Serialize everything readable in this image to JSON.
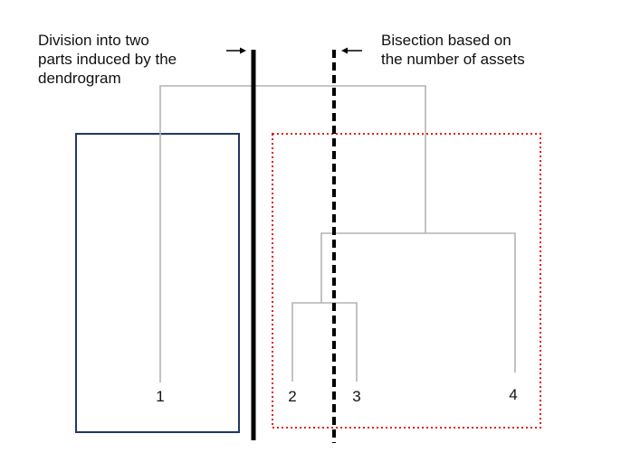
{
  "captions": {
    "left": {
      "line1": "Division into two",
      "line2": "parts induced by the",
      "line3": "dendrogram"
    },
    "right": {
      "line1": "Bisection based on",
      "line2": "the number of assets"
    }
  },
  "leaves": [
    "1",
    "2",
    "3",
    "4"
  ],
  "colors": {
    "dendrogram": "#b4b4b4",
    "left_box": "#1f3864",
    "right_box": "#e02020",
    "divider": "#000000"
  }
}
